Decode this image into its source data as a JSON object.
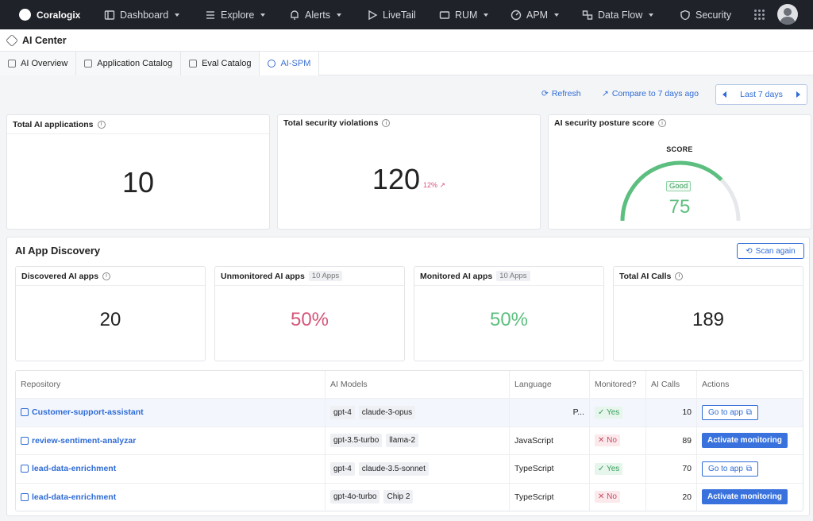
{
  "nav": {
    "brand": "Coralogix",
    "items": [
      {
        "label": "Dashboard",
        "icon": "dashboard-icon",
        "dropdown": true
      },
      {
        "label": "Explore",
        "icon": "explore-icon",
        "dropdown": true
      },
      {
        "label": "Alerts",
        "icon": "bell-icon",
        "dropdown": true
      },
      {
        "label": "LiveTail",
        "icon": "play-icon",
        "dropdown": false
      },
      {
        "label": "RUM",
        "icon": "rum-icon",
        "dropdown": true
      },
      {
        "label": "APM",
        "icon": "gauge-icon",
        "dropdown": true
      },
      {
        "label": "Data Flow",
        "icon": "dataflow-icon",
        "dropdown": true
      },
      {
        "label": "Security",
        "icon": "shield-icon",
        "dropdown": false
      }
    ]
  },
  "page": {
    "title": "AI Center"
  },
  "tabs": [
    {
      "label": "AI Overview",
      "active": false
    },
    {
      "label": "Application Catalog",
      "active": false
    },
    {
      "label": "Eval Catalog",
      "active": false
    },
    {
      "label": "AI-SPM",
      "active": true
    }
  ],
  "toolbar": {
    "refresh": "Refresh",
    "compare": "Compare to 7 days ago",
    "range": "Last 7 days"
  },
  "summary": {
    "total_apps": {
      "title": "Total AI applications",
      "value": "10"
    },
    "violations": {
      "title": "Total security violations",
      "value": "120",
      "delta": "12%"
    },
    "posture": {
      "title": "AI security posture score",
      "label": "SCORE",
      "badge": "Good",
      "value": "75",
      "score_fraction": 0.75
    }
  },
  "discovery": {
    "title": "AI App Discovery",
    "scan_label": "Scan again",
    "discovered": {
      "title": "Discovered AI apps",
      "value": "20"
    },
    "unmonitored": {
      "title": "Unmonitored AI apps",
      "pill": "10 Apps",
      "value": "50%"
    },
    "monitored": {
      "title": "Monitored AI apps",
      "pill": "10 Apps",
      "value": "50%"
    },
    "calls": {
      "title": "Total AI Calls",
      "value": "189"
    }
  },
  "table": {
    "headers": [
      "Repository",
      "AI Models",
      "Language",
      "Monitored?",
      "AI Calls",
      "Actions"
    ],
    "rows": [
      {
        "repo": "Customer-support-assistant",
        "models": [
          "gpt-4",
          "claude-3-opus"
        ],
        "language": "P...",
        "monitored": "Yes",
        "calls": "10",
        "action": "Go to app"
      },
      {
        "repo": "review-sentiment-analyzar",
        "models": [
          "gpt-3.5-turbo",
          "llama-2"
        ],
        "language": "JavaScript",
        "monitored": "No",
        "calls": "89",
        "action": "Activate monitoring"
      },
      {
        "repo": "lead-data-enrichment",
        "models": [
          "gpt-4",
          "claude-3.5-sonnet"
        ],
        "language": "TypeScript",
        "monitored": "Yes",
        "calls": "70",
        "action": "Go to app"
      },
      {
        "repo": "lead-data-enrichment",
        "models": [
          "gpt-4o-turbo",
          "Chip 2"
        ],
        "language": "TypeScript",
        "monitored": "No",
        "calls": "20",
        "action": "Activate monitoring"
      }
    ]
  },
  "colors": {
    "accent": "#2f6cd6",
    "positive": "#5cbf7f",
    "negative": "#d6557a"
  }
}
